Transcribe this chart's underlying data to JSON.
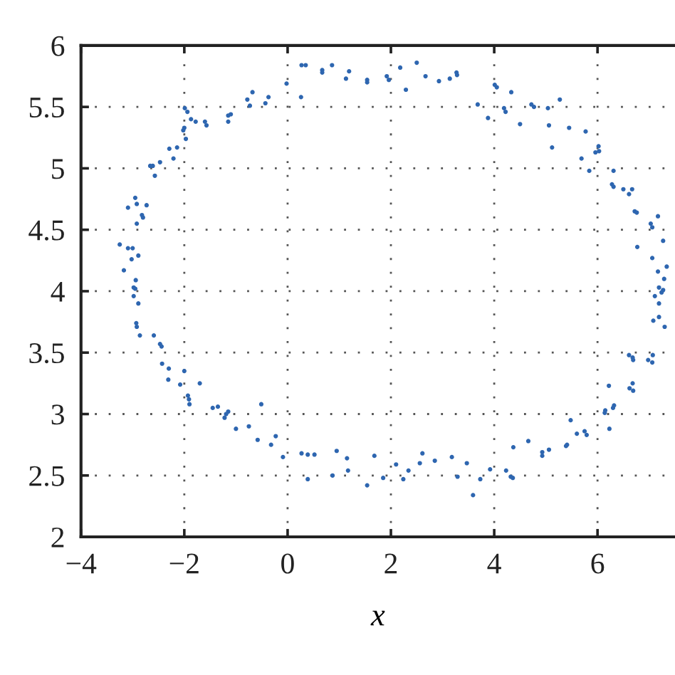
{
  "chart_data": {
    "type": "scatter",
    "xlabel": "x",
    "x": [
      0.27,
      0.35,
      0.67,
      0.67,
      0.86,
      1.13,
      1.19,
      1.54,
      1.54,
      -0.02,
      0.26,
      -0.68,
      -0.78,
      -0.73,
      -0.37,
      -0.43,
      -1.1,
      -1.15,
      -1.15,
      -1.6,
      -1.57,
      -1.78,
      -1.87,
      -1.94,
      -1.99,
      -2.0,
      -2.02,
      -1.97,
      -2.14,
      -2.29,
      -2.21,
      -2.47,
      -2.66,
      -2.61,
      -2.57,
      -2.95,
      -2.92,
      -3.09,
      -2.73,
      -2.82,
      -2.8,
      -2.92,
      -3.25,
      -3.09,
      -3.0,
      -3.02,
      -2.89,
      -3.17,
      -2.94,
      -2.98,
      -2.95,
      -2.98,
      -2.89,
      -2.93,
      -2.92,
      -2.86,
      -2.59,
      -2.47,
      -2.44,
      -2.43,
      -2.3,
      -2.31,
      -2.08,
      -2.0,
      -1.93,
      -1.91,
      -1.9,
      -1.7,
      -1.45,
      -1.35,
      -1.15,
      -1.19,
      -1.22,
      -1.0,
      -0.75,
      -0.51,
      -0.58,
      -0.32,
      -0.23,
      -0.09,
      0.27,
      0.39,
      0.52,
      0.39,
      0.87,
      0.95,
      1.15,
      1.17,
      1.54,
      1.68,
      1.85,
      2.1,
      2.24,
      2.34,
      2.56,
      2.61,
      2.85,
      3.18,
      3.29,
      3.47,
      3.59,
      3.73,
      3.92,
      4.23,
      4.32,
      4.36,
      4.37,
      4.66,
      4.93,
      4.93,
      5.06,
      5.39,
      5.41,
      5.48,
      5.6,
      5.75,
      5.79,
      6.14,
      6.15,
      6.23,
      6.22,
      6.3,
      6.32,
      6.62,
      6.69,
      6.68,
      6.61,
      6.68,
      6.69,
      6.98,
      7.06,
      7.07,
      7.08,
      7.19,
      7.3,
      1.92,
      1.96,
      2.18,
      2.29,
      2.5,
      2.67,
      2.93,
      3.14,
      3.27,
      3.28,
      4.01,
      4.05,
      4.33,
      3.68,
      3.88,
      4.19,
      4.22,
      4.5,
      4.72,
      4.77,
      5.04,
      5.27,
      5.06,
      5.12,
      5.45,
      5.77,
      6.02,
      5.96,
      6.03,
      5.69,
      5.84,
      6.31,
      6.28,
      6.31,
      6.5,
      6.61,
      6.67,
      6.72,
      6.76,
      7.03,
      7.06,
      7.17,
      6.77,
      7.27,
      7.06,
      7.34,
      7.17,
      7.29,
      7.19,
      7.27,
      7.24,
      7.11,
      7.19
    ],
    "values": [
      5.84,
      5.84,
      5.8,
      5.78,
      5.84,
      5.73,
      5.79,
      5.72,
      5.7,
      5.69,
      5.58,
      5.62,
      5.56,
      5.51,
      5.58,
      5.53,
      5.44,
      5.43,
      5.38,
      5.38,
      5.35,
      5.38,
      5.4,
      5.46,
      5.49,
      5.33,
      5.31,
      5.24,
      5.17,
      5.16,
      5.08,
      5.05,
      5.02,
      5.02,
      4.94,
      4.76,
      4.71,
      4.68,
      4.7,
      4.62,
      4.6,
      4.55,
      4.38,
      4.35,
      4.35,
      4.26,
      4.29,
      4.17,
      4.09,
      4.03,
      4.02,
      3.96,
      3.9,
      3.74,
      3.71,
      3.64,
      3.64,
      3.57,
      3.55,
      3.41,
      3.37,
      3.28,
      3.24,
      3.35,
      3.15,
      3.12,
      3.08,
      3.25,
      3.05,
      3.06,
      3.02,
      3.0,
      2.97,
      2.88,
      2.9,
      3.08,
      2.79,
      2.75,
      2.82,
      2.65,
      2.68,
      2.67,
      2.67,
      2.47,
      2.5,
      2.7,
      2.64,
      2.54,
      2.42,
      2.66,
      2.48,
      2.59,
      2.47,
      2.54,
      2.6,
      2.68,
      2.62,
      2.65,
      2.49,
      2.6,
      2.34,
      2.47,
      2.55,
      2.54,
      2.49,
      2.48,
      2.73,
      2.78,
      2.66,
      2.69,
      2.71,
      2.74,
      2.75,
      2.95,
      2.84,
      2.86,
      2.83,
      3.01,
      3.03,
      2.88,
      3.23,
      3.05,
      3.07,
      3.21,
      3.19,
      3.25,
      3.48,
      3.46,
      3.44,
      3.44,
      3.42,
      3.48,
      3.76,
      3.79,
      3.71,
      5.75,
      5.72,
      5.82,
      5.64,
      5.86,
      5.75,
      5.71,
      5.73,
      5.78,
      5.76,
      5.68,
      5.66,
      5.62,
      5.52,
      5.41,
      5.49,
      5.46,
      5.36,
      5.52,
      5.5,
      5.49,
      5.56,
      5.35,
      5.17,
      5.33,
      5.3,
      5.18,
      5.13,
      5.14,
      5.08,
      4.98,
      4.98,
      4.87,
      4.85,
      4.83,
      4.79,
      4.83,
      4.65,
      4.64,
      4.55,
      4.52,
      4.61,
      4.36,
      4.41,
      4.27,
      4.2,
      4.16,
      4.1,
      4.03,
      4.01,
      3.99,
      3.96,
      3.9
    ],
    "color": "#2e66b0",
    "marker": "circle",
    "xlim": [
      -4,
      7.5
    ],
    "ylim": [
      2,
      6
    ],
    "xticks": [
      {
        "value": -4,
        "label": "−4"
      },
      {
        "value": -2,
        "label": "−2"
      },
      0,
      2,
      4,
      6
    ],
    "yticks": [
      2,
      2.5,
      3,
      3.5,
      4,
      4.5,
      5,
      5.5,
      6
    ],
    "grid": true
  }
}
